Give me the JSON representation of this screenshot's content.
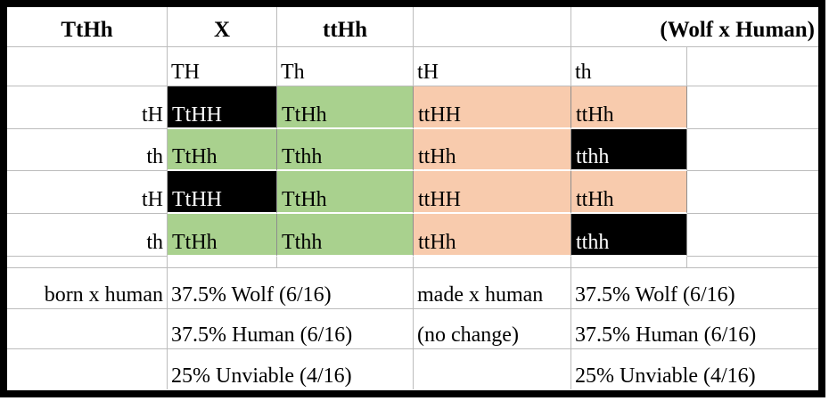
{
  "colors": {
    "green": "#a9d18e",
    "orange": "#f8cbad",
    "black": "#000000",
    "gridline": "#bcbcbc",
    "frame": "#000000"
  },
  "header_row": {
    "parent_left": "TtHh",
    "cross_symbol": "X",
    "parent_right": "ttHh",
    "cross_note": "(Wolf x Human)"
  },
  "gamete_columns": [
    "TH",
    "Th",
    "tH",
    "th"
  ],
  "punnett": {
    "rows": [
      {
        "label": "tH",
        "cells": [
          {
            "text": "TtHH",
            "color": "black"
          },
          {
            "text": "TtHh",
            "color": "green"
          },
          {
            "text": "ttHH",
            "color": "orange"
          },
          {
            "text": "ttHh",
            "color": "orange"
          }
        ]
      },
      {
        "label": "th",
        "cells": [
          {
            "text": "TtHh",
            "color": "green"
          },
          {
            "text": "Tthh",
            "color": "green"
          },
          {
            "text": "ttHh",
            "color": "orange"
          },
          {
            "text": "tthh",
            "color": "black"
          }
        ]
      },
      {
        "label": "tH",
        "cells": [
          {
            "text": "TtHH",
            "color": "black"
          },
          {
            "text": "TtHh",
            "color": "green"
          },
          {
            "text": "ttHH",
            "color": "orange"
          },
          {
            "text": "ttHh",
            "color": "orange"
          }
        ]
      },
      {
        "label": "th",
        "cells": [
          {
            "text": "TtHh",
            "color": "green"
          },
          {
            "text": "Tthh",
            "color": "green"
          },
          {
            "text": "ttHh",
            "color": "orange"
          },
          {
            "text": "tthh",
            "color": "black"
          }
        ]
      }
    ]
  },
  "summary_left": {
    "label": "born x human",
    "wolf": "37.5% Wolf (6/16)",
    "human": "37.5% Human (6/16)",
    "unviable": "25% Unviable (4/16)"
  },
  "summary_right": {
    "label": "made x human",
    "note": "(no change)",
    "wolf": "37.5% Wolf (6/16)",
    "human": "37.5% Human (6/16)",
    "unviable": "25% Unviable (4/16)"
  }
}
